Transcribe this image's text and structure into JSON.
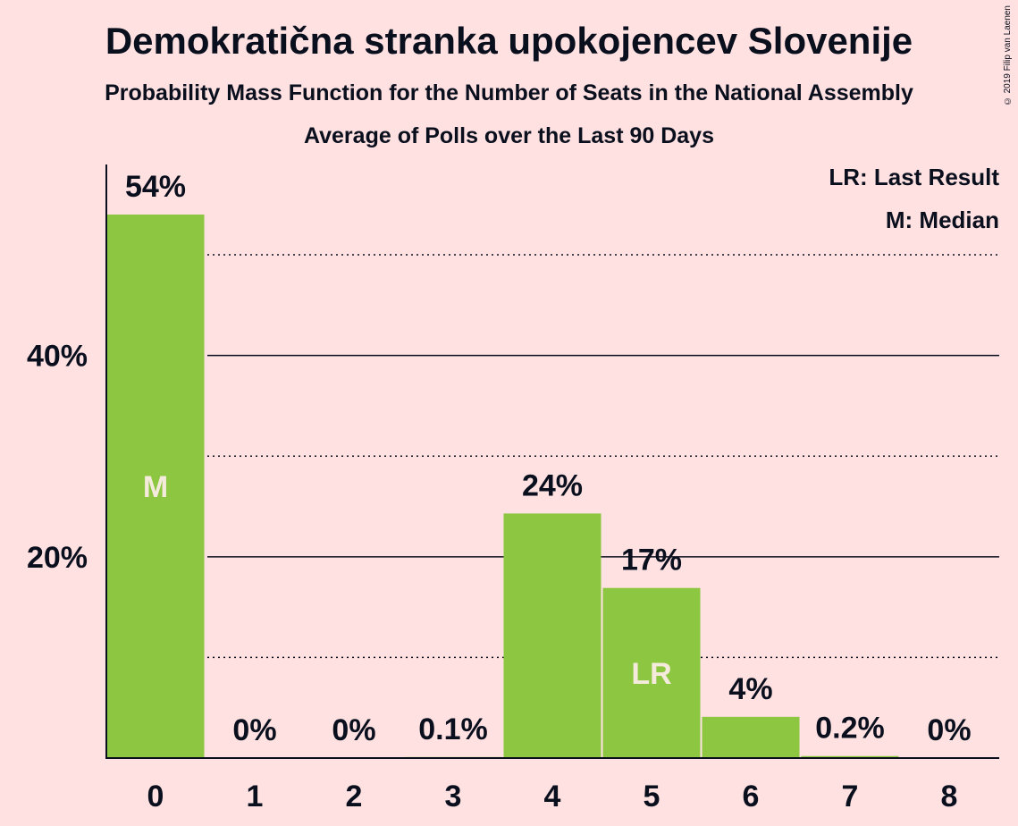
{
  "chart_data": {
    "type": "bar",
    "title": "Demokratična stranka upokojencev Slovenije",
    "subtitle": "Probability Mass Function for the Number of Seats in the National Assembly",
    "subtitle2": "Average of Polls over the Last 90 Days",
    "categories": [
      "0",
      "1",
      "2",
      "3",
      "4",
      "5",
      "6",
      "7",
      "8"
    ],
    "values": [
      54,
      0,
      0,
      0.1,
      24.3,
      16.9,
      4.1,
      0.2,
      0
    ],
    "value_labels": [
      "54%",
      "0%",
      "0%",
      "0.1%",
      "24%",
      "17%",
      "4%",
      "0.2%",
      "0%"
    ],
    "ylim": [
      0,
      59
    ],
    "y_ticks": [
      {
        "value": 20,
        "label": "20%"
      },
      {
        "value": 40,
        "label": "40%"
      }
    ],
    "grid_solid": [
      20,
      40
    ],
    "grid_dotted": [
      10,
      30,
      50
    ],
    "markers": [
      {
        "category": "0",
        "label": "M"
      },
      {
        "category": "5",
        "label": "LR"
      }
    ],
    "legend": [
      {
        "label": "LR: Last Result"
      },
      {
        "label": "M: Median"
      }
    ],
    "legend_position": "top-right",
    "bar_color": "#8dc641",
    "background_color": "#ffe1e1"
  },
  "copyright": "© 2019 Filip van Laenen"
}
